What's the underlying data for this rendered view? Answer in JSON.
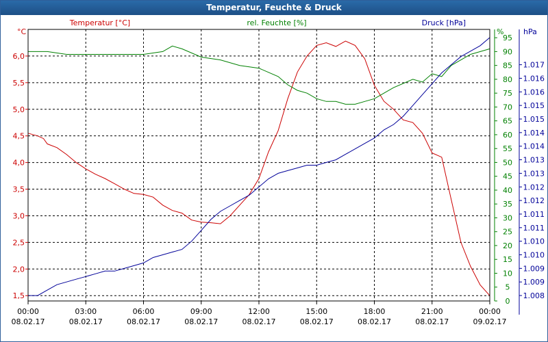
{
  "window": {
    "title": "Temperatur, Feuchte & Druck"
  },
  "colors": {
    "temperature": "#cc0000",
    "humidity": "#008000",
    "pressure": "#000099",
    "title_bar": "#1f5a94"
  },
  "chart_data": {
    "type": "line",
    "title": "Temperatur, Feuchte & Druck",
    "x_ticks": [
      {
        "time": "00:00",
        "date": "08.02.17"
      },
      {
        "time": "03:00",
        "date": "08.02.17"
      },
      {
        "time": "06:00",
        "date": "08.02.17"
      },
      {
        "time": "09:00",
        "date": "08.02.17"
      },
      {
        "time": "12:00",
        "date": "08.02.17"
      },
      {
        "time": "15:00",
        "date": "08.02.17"
      },
      {
        "time": "18:00",
        "date": "08.02.17"
      },
      {
        "time": "21:00",
        "date": "08.02.17"
      },
      {
        "time": "00:00",
        "date": "09.02.17"
      }
    ],
    "x_range_hours": [
      0,
      24
    ],
    "axes": {
      "temperature": {
        "label": "Temperatur [°C]",
        "unit": "°C",
        "ylim": [
          1.4,
          6.5
        ],
        "ticks": [
          "1,5",
          "2,0",
          "2,5",
          "3,0",
          "3,5",
          "4,0",
          "4,5",
          "5,0",
          "5,5",
          "6,0"
        ],
        "tick_values": [
          1.5,
          2.0,
          2.5,
          3.0,
          3.5,
          4.0,
          4.5,
          5.0,
          5.5,
          6.0
        ]
      },
      "humidity": {
        "label": "rel. Feuchte [%]",
        "unit": "%",
        "ylim": [
          0,
          98
        ],
        "ticks": [
          "0",
          "5",
          "10",
          "15",
          "20",
          "25",
          "30",
          "35",
          "40",
          "45",
          "50",
          "55",
          "60",
          "65",
          "70",
          "75",
          "80",
          "85",
          "90",
          "95"
        ],
        "tick_values": [
          0,
          5,
          10,
          15,
          20,
          25,
          30,
          35,
          40,
          45,
          50,
          55,
          60,
          65,
          70,
          75,
          80,
          85,
          90,
          95
        ]
      },
      "pressure": {
        "label": "Druck [hPa]",
        "unit": "hPa",
        "ylim": [
          1.0078,
          1.0178
        ],
        "ticks": [
          "1.008",
          "1.009",
          "1.009",
          "1.010",
          "1.010",
          "1.011",
          "1.011",
          "1.012",
          "1.012",
          "1.013",
          "1.013",
          "1.014",
          "1.014",
          "1.015",
          "1.015",
          "1.016",
          "1.016",
          "1.017"
        ],
        "tick_values": [
          1.008,
          1.0085,
          1.009,
          1.0095,
          1.01,
          1.0105,
          1.011,
          1.0115,
          1.012,
          1.0125,
          1.013,
          1.0135,
          1.014,
          1.0145,
          1.015,
          1.0155,
          1.016,
          1.0165
        ]
      }
    },
    "grid": true,
    "series": [
      {
        "name": "Temperatur [°C]",
        "axis": "temperature",
        "x": [
          0,
          0.5,
          0.8,
          1,
          1.5,
          2,
          2.5,
          3,
          3.5,
          4,
          4.5,
          5,
          5.5,
          6,
          6.5,
          7,
          7.5,
          8,
          8.5,
          9,
          9.5,
          10,
          10.5,
          11,
          11.5,
          12,
          12.5,
          13,
          13.5,
          14,
          14.5,
          15,
          15.5,
          16,
          16.5,
          17,
          17.5,
          18,
          18.5,
          19,
          19.5,
          20,
          20.5,
          21,
          21.5,
          22,
          22.5,
          23,
          23.5,
          24
        ],
        "values": [
          4.55,
          4.5,
          4.45,
          4.35,
          4.28,
          4.15,
          4.0,
          3.88,
          3.78,
          3.7,
          3.6,
          3.5,
          3.42,
          3.4,
          3.35,
          3.2,
          3.1,
          3.05,
          2.92,
          2.88,
          2.87,
          2.85,
          3.0,
          3.2,
          3.4,
          3.7,
          4.2,
          4.6,
          5.2,
          5.7,
          6.0,
          6.2,
          6.25,
          6.18,
          6.28,
          6.2,
          5.95,
          5.45,
          5.15,
          5.0,
          4.8,
          4.75,
          4.55,
          4.18,
          4.1,
          3.3,
          2.5,
          2.05,
          1.7,
          1.5
        ]
      },
      {
        "name": "rel. Feuchte [%]",
        "axis": "humidity",
        "x": [
          0,
          1,
          2,
          3,
          4,
          5,
          6,
          7,
          7.5,
          8,
          9,
          10,
          11,
          12,
          13,
          13.5,
          14,
          14.5,
          15,
          15.5,
          16,
          16.5,
          17,
          17.5,
          18,
          18.5,
          19,
          20,
          20.5,
          21,
          21.5,
          22,
          23,
          24
        ],
        "values": [
          90,
          90,
          89,
          89,
          89,
          89,
          89,
          90,
          92,
          91,
          88,
          87,
          85,
          84,
          81,
          78,
          76,
          75,
          73,
          72,
          72,
          71,
          71,
          72,
          73,
          75,
          77,
          80,
          79,
          82,
          81,
          85,
          89,
          91
        ]
      },
      {
        "name": "Druck [hPa]",
        "axis": "pressure",
        "x": [
          0,
          0.5,
          1,
          1.5,
          2,
          2.5,
          3,
          3.5,
          4,
          4.5,
          5,
          5.5,
          6,
          6.5,
          7,
          7.5,
          8,
          8.5,
          9,
          9.5,
          10,
          10.5,
          11,
          11.5,
          12,
          12.5,
          13,
          13.5,
          14,
          14.5,
          15,
          15.5,
          16,
          16.5,
          17,
          17.5,
          18,
          18.5,
          19,
          19.5,
          20,
          20.5,
          21,
          21.5,
          22,
          22.5,
          23,
          23.5,
          24
        ],
        "values": [
          1.008,
          1.008,
          1.0082,
          1.0084,
          1.0085,
          1.0086,
          1.0087,
          1.0088,
          1.0089,
          1.0089,
          1.009,
          1.0091,
          1.0092,
          1.0094,
          1.0095,
          1.0096,
          1.0097,
          1.01,
          1.0104,
          1.0108,
          1.0111,
          1.0113,
          1.0115,
          1.0117,
          1.012,
          1.0123,
          1.0125,
          1.0126,
          1.0127,
          1.0128,
          1.0128,
          1.0129,
          1.013,
          1.0132,
          1.0134,
          1.0136,
          1.0138,
          1.0141,
          1.0143,
          1.0146,
          1.015,
          1.0154,
          1.0158,
          1.0162,
          1.0165,
          1.0168,
          1.017,
          1.0172,
          1.0175
        ]
      }
    ]
  }
}
